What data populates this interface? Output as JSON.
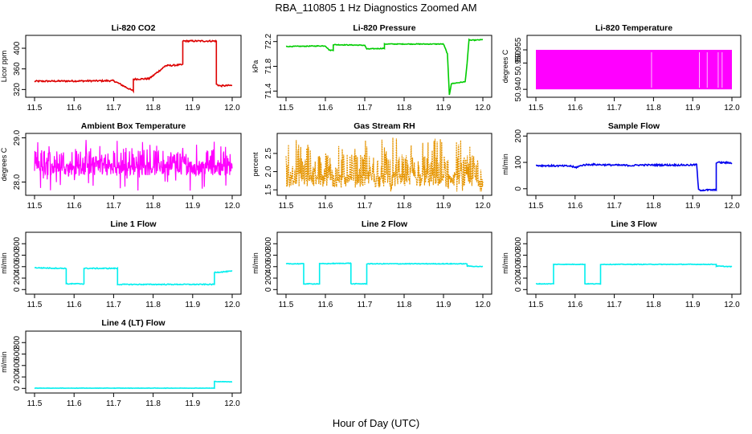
{
  "figure": {
    "main_title": "RBA_110805  1 Hz Diagnostics Zoomed AM",
    "x_label": "Hour of Day (UTC)"
  },
  "chart_data": [
    {
      "type": "line",
      "title": "Li-820 CO2",
      "ylabel": "Licor ppm",
      "xlim": [
        11.5,
        12.0
      ],
      "ylim": [
        305,
        425
      ],
      "x_ticks": [
        "11.5",
        "11.6",
        "11.7",
        "11.8",
        "11.9",
        "12.0"
      ],
      "y_ticks": [
        {
          "v": 320,
          "t": "320"
        },
        {
          "v": 360,
          "t": "360"
        },
        {
          "v": 400,
          "t": "400"
        }
      ],
      "color": "#dd0000",
      "pattern": "steps",
      "noise": 1.5,
      "series": [
        {
          "x": [
            11.5,
            11.7,
            11.7,
            11.75,
            11.75,
            11.79,
            11.79,
            11.83,
            11.83,
            11.875,
            11.875,
            11.96,
            11.96,
            11.97,
            12.0
          ],
          "y": [
            336,
            337,
            337,
            317,
            340,
            341,
            341,
            365,
            366,
            368,
            414,
            414,
            330,
            327,
            328
          ]
        }
      ]
    },
    {
      "type": "line",
      "title": "Li-820 Pressure",
      "ylabel": "kPa",
      "xlim": [
        11.5,
        12.0
      ],
      "ylim": [
        71.3,
        72.3
      ],
      "x_ticks": [
        "11.5",
        "11.6",
        "11.7",
        "11.8",
        "11.9",
        "12.0"
      ],
      "y_ticks": [
        {
          "v": 71.4,
          "t": "71.4"
        },
        {
          "v": 71.8,
          "t": "71.8"
        },
        {
          "v": 72.2,
          "t": "72.2"
        }
      ],
      "color": "#00cc00",
      "pattern": "steps",
      "noise": 0.006,
      "series": [
        {
          "x": [
            11.5,
            11.6,
            11.61,
            11.62,
            11.62,
            11.7,
            11.705,
            11.75,
            11.75,
            11.9,
            11.91,
            11.915,
            11.92,
            11.955,
            11.96,
            11.965,
            11.97,
            12.0
          ],
          "y": [
            72.12,
            72.13,
            72.06,
            72.06,
            72.15,
            72.14,
            72.08,
            72.09,
            72.16,
            72.16,
            72.0,
            71.34,
            71.52,
            71.55,
            71.85,
            72.23,
            72.22,
            72.23
          ]
        }
      ]
    },
    {
      "type": "line",
      "title": "Li-820 Temperature",
      "ylabel": "degrees C",
      "xlim": [
        11.5,
        12.0
      ],
      "ylim": [
        50.937,
        50.9605
      ],
      "x_ticks": [
        "11.5",
        "11.6",
        "11.7",
        "11.8",
        "11.9",
        "12.0"
      ],
      "y_ticks": [
        {
          "v": 50.94,
          "t": "50.940"
        },
        {
          "v": 50.95,
          "t": "50.950"
        },
        {
          "v": 50.955,
          "t": "50.955"
        }
      ],
      "color": "#ff00ff",
      "pattern": "fill",
      "gaps": [
        11.795,
        11.917,
        11.937,
        11.965,
        11.975
      ],
      "series": [
        {
          "x": [
            11.5,
            12.0
          ],
          "y_range": [
            50.94,
            50.955
          ]
        }
      ]
    },
    {
      "type": "line",
      "title": "Ambient Box Temperature",
      "ylabel": "degrees C",
      "xlim": [
        11.5,
        12.0
      ],
      "ylim": [
        27.7,
        29.1
      ],
      "x_ticks": [
        "11.5",
        "11.6",
        "11.7",
        "11.8",
        "11.9",
        "12.0"
      ],
      "y_ticks": [
        {
          "v": 28.0,
          "t": "28.0"
        },
        {
          "v": 29.0,
          "t": "29.0"
        }
      ],
      "color": "#ff00ff",
      "pattern": "spiky",
      "series": [
        {
          "x": [
            11.5,
            12.0
          ],
          "y_base": 28.3,
          "y_min": 27.8,
          "y_max": 29.0
        }
      ]
    },
    {
      "type": "line",
      "title": "Gas Stream RH",
      "ylabel": "percent",
      "xlim": [
        11.5,
        12.0
      ],
      "ylim": [
        1.35,
        3.05
      ],
      "x_ticks": [
        "11.5",
        "11.6",
        "11.7",
        "11.8",
        "11.9",
        "12.0"
      ],
      "y_ticks": [
        {
          "v": 1.5,
          "t": "1.5"
        },
        {
          "v": 2.0,
          "t": "2.0"
        },
        {
          "v": 2.5,
          "t": "2.5"
        }
      ],
      "color": "#e69500",
      "pattern": "spiky",
      "series": [
        {
          "x": [
            11.5,
            12.0
          ],
          "y_base": 1.75,
          "y_min": 1.45,
          "y_max": 2.95
        }
      ]
    },
    {
      "type": "line",
      "title": "Sample Flow",
      "ylabel": "ml/min",
      "xlim": [
        11.5,
        12.0
      ],
      "ylim": [
        -25,
        210
      ],
      "x_ticks": [
        "11.5",
        "11.6",
        "11.7",
        "11.8",
        "11.9",
        "12.0"
      ],
      "y_ticks": [
        {
          "v": 0,
          "t": "0"
        },
        {
          "v": 100,
          "t": "100"
        },
        {
          "v": 200,
          "t": "200"
        }
      ],
      "color": "#0000ee",
      "pattern": "steps",
      "noise": 3,
      "series": [
        {
          "x": [
            11.5,
            11.59,
            11.6,
            11.62,
            11.64,
            11.75,
            11.76,
            11.9,
            11.91,
            11.915,
            11.955,
            11.96,
            11.96,
            12.0
          ],
          "y": [
            88,
            86,
            80,
            90,
            92,
            88,
            90,
            90,
            92,
            -5,
            -5,
            -5,
            100,
            98
          ]
        }
      ]
    },
    {
      "type": "line",
      "title": "Line 1 Flow",
      "ylabel": "ml/min",
      "xlim": [
        11.5,
        12.0
      ],
      "ylim": [
        -80,
        1000
      ],
      "x_ticks": [
        "11.5",
        "11.6",
        "11.7",
        "11.8",
        "11.9",
        "12.0"
      ],
      "y_ticks": [
        {
          "v": 0,
          "t": "0"
        },
        {
          "v": 200,
          "t": "200"
        },
        {
          "v": 400,
          "t": "400"
        },
        {
          "v": 600,
          "t": "600"
        },
        {
          "v": 800,
          "t": "800"
        }
      ],
      "color": "#00eeee",
      "pattern": "steps",
      "noise": 8,
      "series": [
        {
          "x": [
            11.5,
            11.58,
            11.58,
            11.625,
            11.625,
            11.71,
            11.71,
            11.955,
            11.955,
            12.0
          ],
          "y": [
            380,
            370,
            100,
            100,
            370,
            370,
            90,
            90,
            300,
            320
          ]
        }
      ]
    },
    {
      "type": "line",
      "title": "Line 2 Flow",
      "ylabel": "ml/min",
      "xlim": [
        11.5,
        12.0
      ],
      "ylim": [
        -80,
        1000
      ],
      "x_ticks": [
        "11.5",
        "11.6",
        "11.7",
        "11.8",
        "11.9",
        "12.0"
      ],
      "y_ticks": [
        {
          "v": 0,
          "t": "0"
        },
        {
          "v": 200,
          "t": "200"
        },
        {
          "v": 400,
          "t": "400"
        },
        {
          "v": 600,
          "t": "600"
        },
        {
          "v": 800,
          "t": "800"
        }
      ],
      "color": "#00eeee",
      "pattern": "steps",
      "noise": 6,
      "series": [
        {
          "x": [
            11.5,
            11.545,
            11.545,
            11.585,
            11.585,
            11.665,
            11.665,
            11.705,
            11.705,
            11.96,
            11.96,
            12.0
          ],
          "y": [
            450,
            450,
            100,
            100,
            450,
            460,
            100,
            100,
            450,
            450,
            410,
            400
          ]
        }
      ]
    },
    {
      "type": "line",
      "title": "Line 3 Flow",
      "ylabel": "ml/min",
      "xlim": [
        11.5,
        12.0
      ],
      "ylim": [
        -80,
        1000
      ],
      "x_ticks": [
        "11.5",
        "11.6",
        "11.7",
        "11.8",
        "11.9",
        "12.0"
      ],
      "y_ticks": [
        {
          "v": 0,
          "t": "0"
        },
        {
          "v": 200,
          "t": "200"
        },
        {
          "v": 400,
          "t": "400"
        },
        {
          "v": 600,
          "t": "600"
        },
        {
          "v": 800,
          "t": "800"
        }
      ],
      "color": "#00eeee",
      "pattern": "steps",
      "noise": 5,
      "series": [
        {
          "x": [
            11.5,
            11.545,
            11.545,
            11.625,
            11.625,
            11.665,
            11.665,
            11.96,
            11.96,
            12.0
          ],
          "y": [
            100,
            100,
            440,
            440,
            100,
            100,
            440,
            440,
            410,
            400
          ]
        }
      ]
    },
    {
      "type": "line",
      "title": "Line 4 (LT) Flow",
      "ylabel": "ml/min",
      "xlim": [
        11.5,
        12.0
      ],
      "ylim": [
        -80,
        1000
      ],
      "x_ticks": [
        "11.5",
        "11.6",
        "11.7",
        "11.8",
        "11.9",
        "12.0"
      ],
      "y_ticks": [
        {
          "v": 0,
          "t": "0"
        },
        {
          "v": 200,
          "t": "200"
        },
        {
          "v": 400,
          "t": "400"
        },
        {
          "v": 600,
          "t": "600"
        },
        {
          "v": 800,
          "t": "800"
        }
      ],
      "color": "#00eeee",
      "pattern": "steps",
      "noise": 3,
      "series": [
        {
          "x": [
            11.5,
            11.955,
            11.955,
            12.0
          ],
          "y": [
            5,
            5,
            120,
            115
          ]
        }
      ]
    }
  ]
}
